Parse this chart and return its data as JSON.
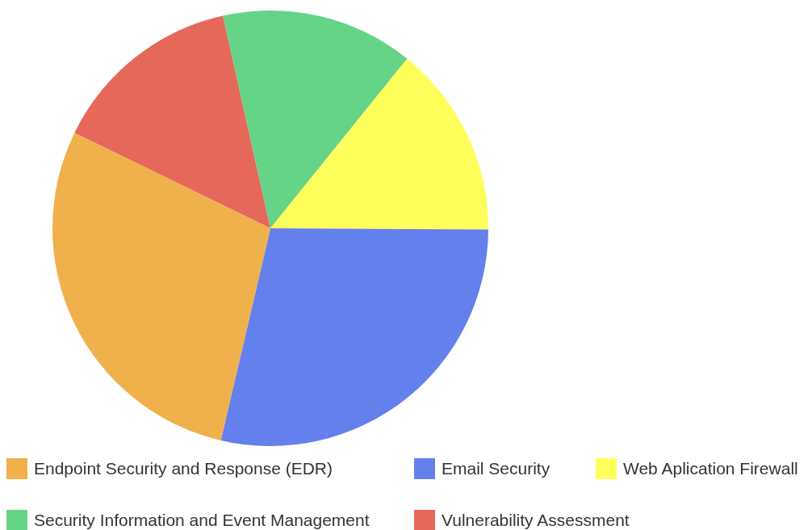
{
  "chart_data": {
    "type": "pie",
    "categories": [
      "Endpoint Security and Response (EDR)",
      "Email Security",
      "Web Aplication Firewall",
      "Security Information and Event Management",
      "Vulnerability Assessment"
    ],
    "values": [
      28.57,
      28.57,
      14.29,
      14.29,
      14.28
    ],
    "colors": [
      "#f0b04c",
      "#6380ec",
      "#ffff5c",
      "#66d486",
      "#e5685a"
    ],
    "legend": "bottom"
  }
}
